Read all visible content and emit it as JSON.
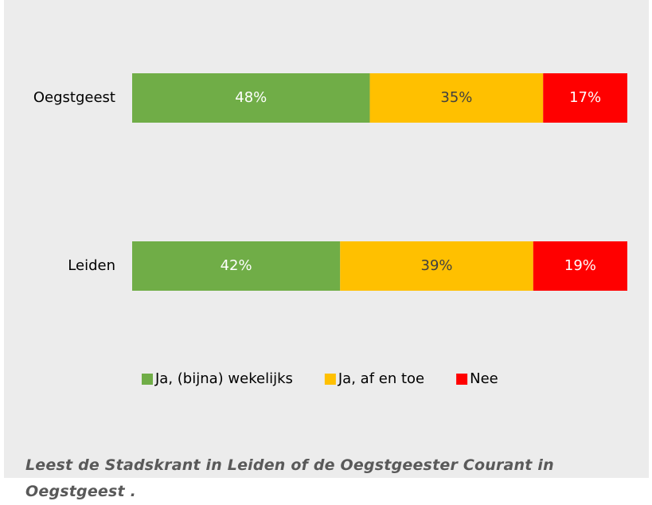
{
  "chart_data": {
    "type": "stacked_bar_horizontal",
    "caption": "Leest de Stadskrant in Leiden of de Oegstgeester Courant in Oegstgeest .",
    "categories": [
      "Oegstgeest",
      "Leiden"
    ],
    "series": [
      {
        "name": "Ja, (bijna) wekelijks",
        "color": "#70ad47",
        "values": [
          48,
          42
        ],
        "value_labels": [
          "48%",
          "42%"
        ]
      },
      {
        "name": "Ja, af en toe",
        "color": "#ffc000",
        "values": [
          35,
          39
        ],
        "value_labels": [
          "35%",
          "39%"
        ]
      },
      {
        "name": "Nee",
        "color": "#ff0000",
        "values": [
          17,
          19
        ],
        "value_labels": [
          "17%",
          "19%"
        ]
      }
    ],
    "xlim": [
      0,
      100
    ],
    "legend": "bottom"
  }
}
